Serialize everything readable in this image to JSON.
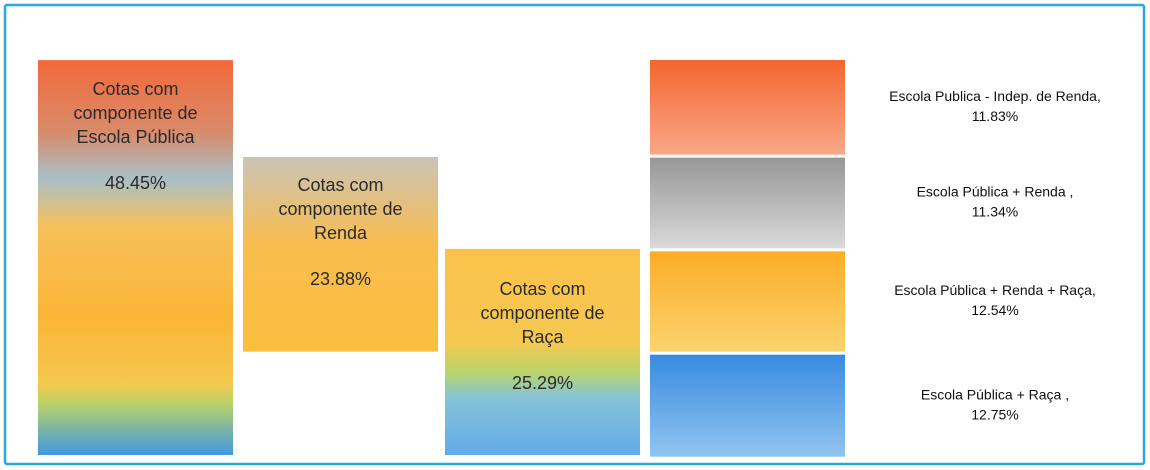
{
  "columns": [
    {
      "label_lines": [
        "Cotas com",
        "componente de",
        "Escola Pública"
      ],
      "value": 48.45,
      "value_label": "48.45%"
    },
    {
      "label_lines": [
        "Cotas com",
        "componente de",
        "Renda"
      ],
      "value": 23.88,
      "value_label": "23.88%"
    },
    {
      "label_lines": [
        "Cotas com",
        "componente de",
        "Raça"
      ],
      "value": 25.29,
      "value_label": "25.29%"
    }
  ],
  "segments": [
    {
      "label": "Escola Publica - Indep. de Renda,",
      "value": 11.83,
      "value_label": "11.83%"
    },
    {
      "label": "Escola Pública + Renda ,",
      "value": 11.34,
      "value_label": "11.34%"
    },
    {
      "label": "Escola Pública + Renda + Raça,",
      "value": 12.54,
      "value_label": "12.54%"
    },
    {
      "label": "Escola Pública + Raça ,",
      "value": 12.75,
      "value_label": "12.75%"
    }
  ]
}
